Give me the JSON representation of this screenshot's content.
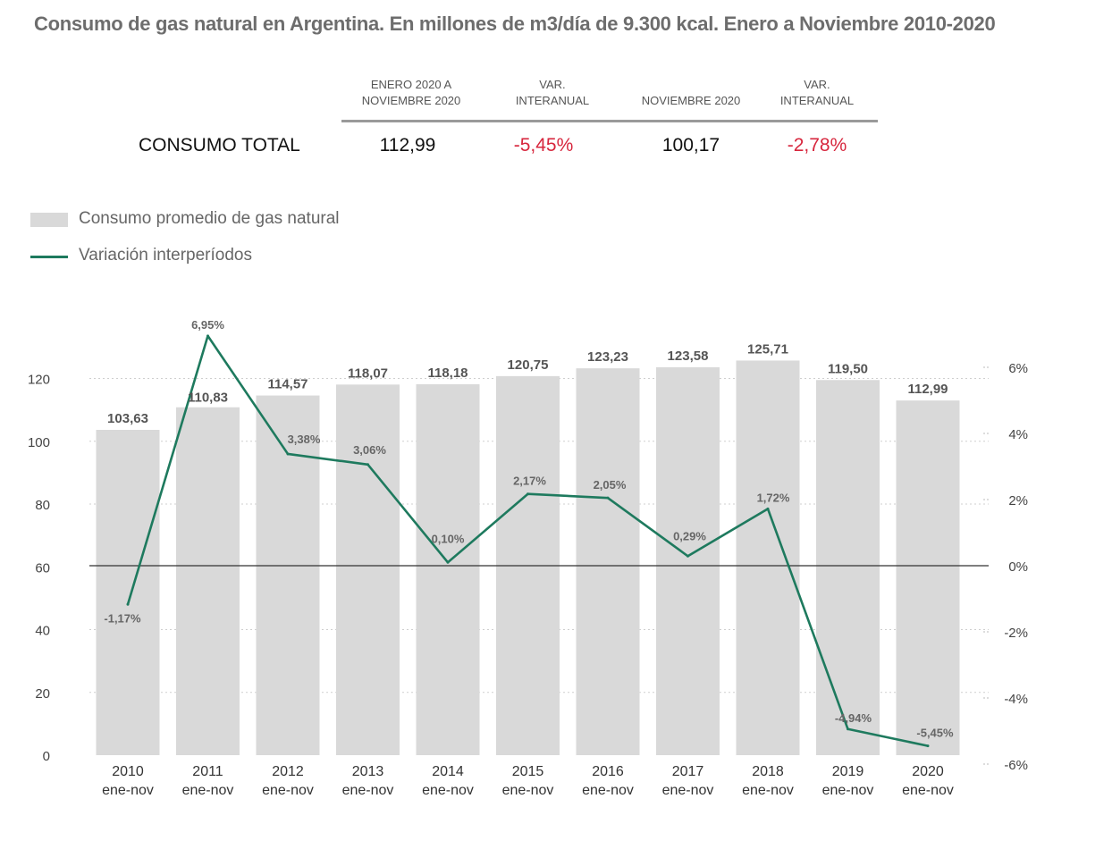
{
  "title": "Consumo de gas natural en Argentina. En millones de m3/día de 9.300 kcal. Enero a Noviembre 2010-2020",
  "summary": {
    "headers": [
      "ENERO 2020 A\nNOVIEMBRE 2020",
      "VAR.\nINTERANUAL",
      "NOVIEMBRE 2020",
      "VAR.\nINTERANUAL"
    ],
    "row_label": "CONSUMO TOTAL",
    "values": [
      "112,99",
      "-5,45%",
      "100,17",
      "-2,78%"
    ]
  },
  "legend": {
    "bar_label": "Consumo promedio de gas natural",
    "line_label": "Variación interperíodos"
  },
  "colors": {
    "bar": "#d9d9d9",
    "line": "#1e7a5e",
    "negative": "#d7263d"
  },
  "chart_data": {
    "type": "bar",
    "categories": [
      "2010",
      "2011",
      "2012",
      "2013",
      "2014",
      "2015",
      "2016",
      "2017",
      "2018",
      "2019",
      "2020"
    ],
    "category_sublabel": "ene-nov",
    "series": [
      {
        "name": "Consumo promedio de gas natural",
        "type": "bar",
        "axis": "left",
        "values": [
          103.63,
          110.83,
          114.57,
          118.07,
          118.18,
          120.75,
          123.23,
          123.58,
          125.71,
          119.5,
          112.99
        ],
        "labels": [
          "103,63",
          "110,83",
          "114,57",
          "118,07",
          "118,18",
          "120,75",
          "123,23",
          "123,58",
          "125,71",
          "119,50",
          "112,99"
        ]
      },
      {
        "name": "Variación interperíodos",
        "type": "line",
        "axis": "right",
        "values": [
          -1.17,
          6.95,
          3.38,
          3.06,
          0.1,
          2.17,
          2.05,
          0.29,
          1.72,
          -4.94,
          -5.45
        ],
        "labels": [
          "-1,17%",
          "6,95%",
          "3,38%",
          "3,06%",
          "0,10%",
          "2,17%",
          "2,05%",
          "0,29%",
          "1,72%",
          "-4,94%",
          "-5,45%"
        ]
      }
    ],
    "y_left": {
      "lim": [
        0,
        130
      ],
      "ticks": [
        0,
        20,
        40,
        60,
        80,
        100,
        120
      ],
      "tick_labels": [
        "0",
        "20",
        "40",
        "60",
        "80",
        "100",
        "120"
      ]
    },
    "y_right": {
      "ticks": [
        -6,
        -4,
        -2,
        0,
        2,
        4,
        6
      ],
      "tick_labels": [
        "-6%",
        "-4%",
        "-2%",
        "0%",
        "2%",
        "4%",
        "6%"
      ]
    },
    "grid": "dotted horizontal"
  }
}
